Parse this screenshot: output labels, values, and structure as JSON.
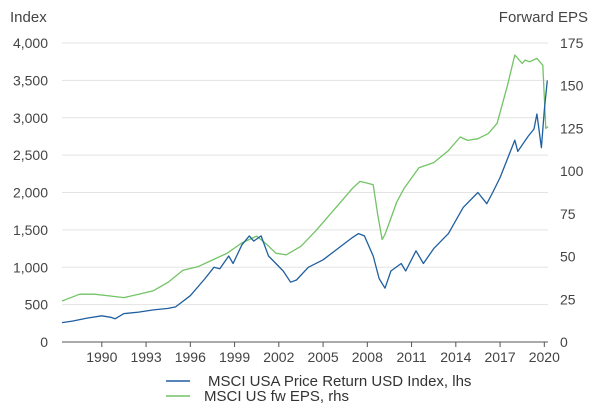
{
  "chart_data": {
    "type": "line",
    "left_axis_title": "Index",
    "right_axis_title": "Forward EPS",
    "xlim": [
      1987.3,
      2020.25
    ],
    "ylim_left": [
      0,
      4000
    ],
    "ylim_right": [
      0,
      175
    ],
    "x_ticks": [
      1990,
      1993,
      1996,
      1999,
      2002,
      2005,
      2008,
      2011,
      2014,
      2017,
      2020
    ],
    "x_tick_labels": [
      "1990",
      "1993",
      "1996",
      "1999",
      "2002",
      "2005",
      "2008",
      "2011",
      "2014",
      "2017",
      "2020"
    ],
    "y_left_ticks": [
      0,
      500,
      1000,
      1500,
      2000,
      2500,
      3000,
      3500,
      4000
    ],
    "y_left_tick_labels": [
      "0",
      "500",
      "1,000",
      "1,500",
      "2,000",
      "2,500",
      "3,000",
      "3,500",
      "4,000"
    ],
    "y_right_ticks": [
      0,
      25,
      50,
      75,
      100,
      125,
      150,
      175
    ],
    "y_right_tick_labels": [
      "0",
      "25",
      "50",
      "75",
      "100",
      "125",
      "150",
      "175"
    ],
    "grid": true,
    "legend_position": "bottom",
    "series": [
      {
        "name": "MSCI USA Price Return USD Index, lhs",
        "axis": "left",
        "color": "#1f5fa0",
        "x": [
          1987.3,
          1988.0,
          1989.0,
          1990.0,
          1990.6,
          1990.9,
          1991.5,
          1992.5,
          1993.5,
          1994.5,
          1995.0,
          1996.0,
          1997.0,
          1997.6,
          1998.0,
          1998.6,
          1998.9,
          1999.5,
          2000.0,
          2000.3,
          2000.8,
          2001.3,
          2001.8,
          2002.3,
          2002.8,
          2003.2,
          2004.0,
          2005.0,
          2006.0,
          2007.0,
          2007.4,
          2007.8,
          2008.4,
          2008.8,
          2009.2,
          2009.6,
          2010.3,
          2010.6,
          2011.3,
          2011.8,
          2012.5,
          2013.5,
          2014.5,
          2015.5,
          2016.1,
          2016.5,
          2017.0,
          2018.0,
          2018.2,
          2018.9,
          2019.3,
          2019.5,
          2019.8,
          2020.0,
          2020.2
        ],
        "values": [
          260,
          280,
          320,
          350,
          330,
          310,
          380,
          400,
          430,
          450,
          470,
          620,
          850,
          1000,
          980,
          1150,
          1050,
          1300,
          1420,
          1350,
          1420,
          1150,
          1050,
          950,
          800,
          830,
          1000,
          1100,
          1250,
          1400,
          1450,
          1420,
          1150,
          850,
          720,
          950,
          1050,
          950,
          1220,
          1050,
          1250,
          1450,
          1800,
          2000,
          1850,
          2000,
          2200,
          2700,
          2550,
          2750,
          2850,
          3050,
          2600,
          3100,
          3500
        ]
      },
      {
        "name": "MSCI US fw EPS, rhs",
        "axis": "right",
        "color": "#72c465",
        "x": [
          1987.3,
          1987.6,
          1988.5,
          1989.5,
          1990.5,
          1991.5,
          1992.5,
          1993.5,
          1994.5,
          1995.5,
          1996.5,
          1997.5,
          1998.5,
          1999.5,
          2000.5,
          2001.2,
          2001.8,
          2002.5,
          2003.5,
          2004.5,
          2005.5,
          2006.5,
          2007.0,
          2007.5,
          2008.0,
          2008.4,
          2008.7,
          2009.0,
          2009.2,
          2009.5,
          2010.0,
          2010.5,
          2011.5,
          2012.5,
          2013.5,
          2014.3,
          2014.8,
          2015.5,
          2016.2,
          2016.8,
          2017.5,
          2018.0,
          2018.5,
          2018.7,
          2019.0,
          2019.5,
          2019.9,
          2020.1,
          2020.25
        ],
        "values": [
          24,
          25,
          28,
          28,
          27,
          26,
          28,
          30,
          35,
          42,
          44,
          48,
          52,
          58,
          62,
          57,
          52,
          51,
          56,
          65,
          75,
          85,
          90,
          94,
          93,
          92,
          75,
          60,
          63,
          70,
          82,
          90,
          102,
          105,
          112,
          120,
          118,
          119,
          122,
          128,
          150,
          168,
          163,
          165,
          164,
          166,
          162,
          125,
          126
        ]
      }
    ]
  }
}
